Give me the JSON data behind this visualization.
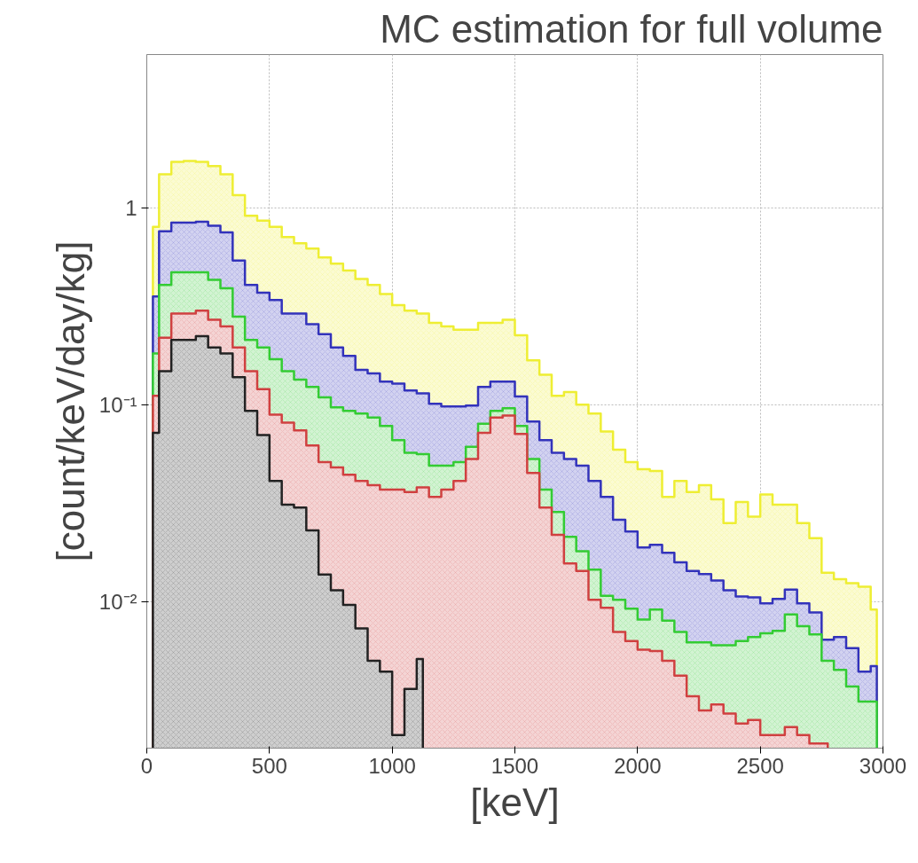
{
  "chart_data": {
    "type": "area",
    "title": "MC estimation for full volume",
    "xlabel": "[keV]",
    "ylabel": "[count/keV/day/kg]",
    "x": [
      25,
      75,
      125,
      175,
      225,
      275,
      325,
      375,
      425,
      475,
      525,
      575,
      625,
      675,
      725,
      775,
      825,
      875,
      925,
      975,
      1025,
      1075,
      1125,
      1175,
      1225,
      1275,
      1325,
      1375,
      1425,
      1475,
      1525,
      1575,
      1625,
      1675,
      1725,
      1775,
      1825,
      1875,
      1925,
      1975,
      2025,
      2075,
      2125,
      2175,
      2225,
      2275,
      2325,
      2375,
      2425,
      2475,
      2525,
      2575,
      2625,
      2675,
      2725,
      2775,
      2825,
      2875,
      2925,
      2975
    ],
    "series": [
      {
        "color": "#eeee33",
        "values": [
          0.8,
          1.48,
          1.71,
          1.73,
          1.71,
          1.63,
          1.48,
          1.16,
          0.91,
          0.86,
          0.8,
          0.71,
          0.66,
          0.62,
          0.56,
          0.52,
          0.48,
          0.435,
          0.405,
          0.365,
          0.32,
          0.3,
          0.29,
          0.26,
          0.25,
          0.24,
          0.24,
          0.26,
          0.26,
          0.27,
          0.225,
          0.168,
          0.142,
          0.111,
          0.116,
          0.1,
          0.09,
          0.073,
          0.059,
          0.051,
          0.047,
          0.046,
          0.034,
          0.041,
          0.036,
          0.039,
          0.033,
          0.025,
          0.032,
          0.027,
          0.035,
          0.031,
          0.031,
          0.025,
          0.021,
          0.014,
          0.013,
          0.0124,
          0.0119,
          0.0091
        ]
      },
      {
        "color": "#3333bb",
        "values": [
          0.354,
          0.76,
          0.84,
          0.84,
          0.85,
          0.81,
          0.75,
          0.54,
          0.405,
          0.37,
          0.34,
          0.29,
          0.29,
          0.256,
          0.228,
          0.195,
          0.177,
          0.15,
          0.144,
          0.131,
          0.128,
          0.118,
          0.114,
          0.101,
          0.098,
          0.098,
          0.099,
          0.123,
          0.131,
          0.131,
          0.11,
          0.082,
          0.066,
          0.057,
          0.053,
          0.049,
          0.041,
          0.034,
          0.026,
          0.0227,
          0.0188,
          0.0194,
          0.0177,
          0.0158,
          0.0143,
          0.0138,
          0.0128,
          0.0114,
          0.0106,
          0.0105,
          0.0098,
          0.0103,
          0.0115,
          0.0098,
          0.0088,
          0.0064,
          0.0066,
          0.0058,
          0.0044,
          0.0047
        ]
      },
      {
        "color": "#33cc33",
        "values": [
          0.182,
          0.405,
          0.47,
          0.47,
          0.47,
          0.43,
          0.39,
          0.28,
          0.213,
          0.195,
          0.17,
          0.148,
          0.134,
          0.123,
          0.109,
          0.097,
          0.093,
          0.09,
          0.086,
          0.078,
          0.066,
          0.057,
          0.056,
          0.049,
          0.049,
          0.051,
          0.061,
          0.08,
          0.093,
          0.096,
          0.078,
          0.053,
          0.037,
          0.0285,
          0.0213,
          0.018,
          0.0145,
          0.0107,
          0.0102,
          0.0092,
          0.0081,
          0.0091,
          0.008,
          0.007,
          0.0062,
          0.0062,
          0.006,
          0.006,
          0.0063,
          0.0066,
          0.0069,
          0.0071,
          0.0086,
          0.0075,
          0.0068,
          0.005,
          0.0045,
          0.0037,
          0.0031,
          0.0031
        ]
      },
      {
        "color": "#d04040",
        "values": [
          0.111,
          0.219,
          0.29,
          0.29,
          0.3,
          0.27,
          0.25,
          0.195,
          0.148,
          0.12,
          0.089,
          0.081,
          0.074,
          0.062,
          0.051,
          0.048,
          0.044,
          0.041,
          0.039,
          0.037,
          0.037,
          0.036,
          0.038,
          0.034,
          0.037,
          0.041,
          0.053,
          0.072,
          0.086,
          0.088,
          0.071,
          0.045,
          0.03,
          0.0218,
          0.0156,
          0.0143,
          0.0102,
          0.0093,
          0.007,
          0.0063,
          0.0057,
          0.0056,
          0.005,
          0.0042,
          0.0033,
          0.0028,
          0.003,
          0.0027,
          0.0024,
          0.0025,
          0.0021,
          0.0021,
          0.0023,
          0.0021,
          0.0019,
          0.0019,
          null,
          null,
          null,
          null
        ]
      },
      {
        "color": "#222222",
        "values": [
          0.072,
          0.148,
          0.213,
          0.213,
          0.223,
          0.195,
          0.182,
          0.138,
          0.093,
          0.07,
          0.041,
          0.031,
          0.03,
          0.023,
          0.0137,
          0.0114,
          0.0096,
          0.0073,
          0.005,
          0.0044,
          0.0021,
          0.0036,
          0.0051,
          null,
          null,
          null,
          null,
          null,
          null,
          null,
          null,
          null,
          null,
          null,
          null,
          null,
          null,
          null,
          null,
          null,
          null,
          null,
          null,
          null,
          null,
          null,
          null,
          null,
          null,
          null,
          null,
          null,
          null,
          null,
          null,
          null,
          null,
          null,
          null,
          null
        ]
      }
    ],
    "log": "y",
    "xlim": [
      0,
      3000
    ],
    "ylim": [
      0.0018,
      6
    ],
    "xticks": [
      0,
      500,
      1000,
      1500,
      2000,
      2500,
      3000
    ],
    "yticks": [
      {
        "value": 0.01,
        "label": "10⁻²"
      },
      {
        "value": 0.1,
        "label": "10⁻¹"
      },
      {
        "value": 1,
        "label": "1"
      }
    ],
    "grid": true
  }
}
